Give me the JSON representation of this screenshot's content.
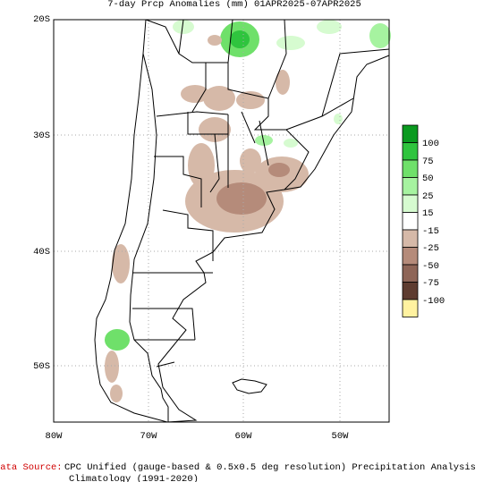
{
  "title": "7-day Prcp Anomalies (mm) 01APR2025-07APR2025",
  "map": {
    "lat_labels": [
      "20S",
      "30S",
      "40S",
      "50S"
    ],
    "lon_labels": [
      "80W",
      "70W",
      "60W",
      "50W"
    ]
  },
  "legend": {
    "labels": [
      "100",
      "75",
      "50",
      "25",
      "15",
      "-15",
      "-25",
      "-50",
      "-75",
      "-100"
    ]
  },
  "footer": {
    "source_label": "Data Source:",
    "source_text": "CPC Unified (gauge-based & 0.5x0.5 deg resolution) Precipitation Analysis",
    "climatology": "Climatology (1991-2020)"
  }
}
